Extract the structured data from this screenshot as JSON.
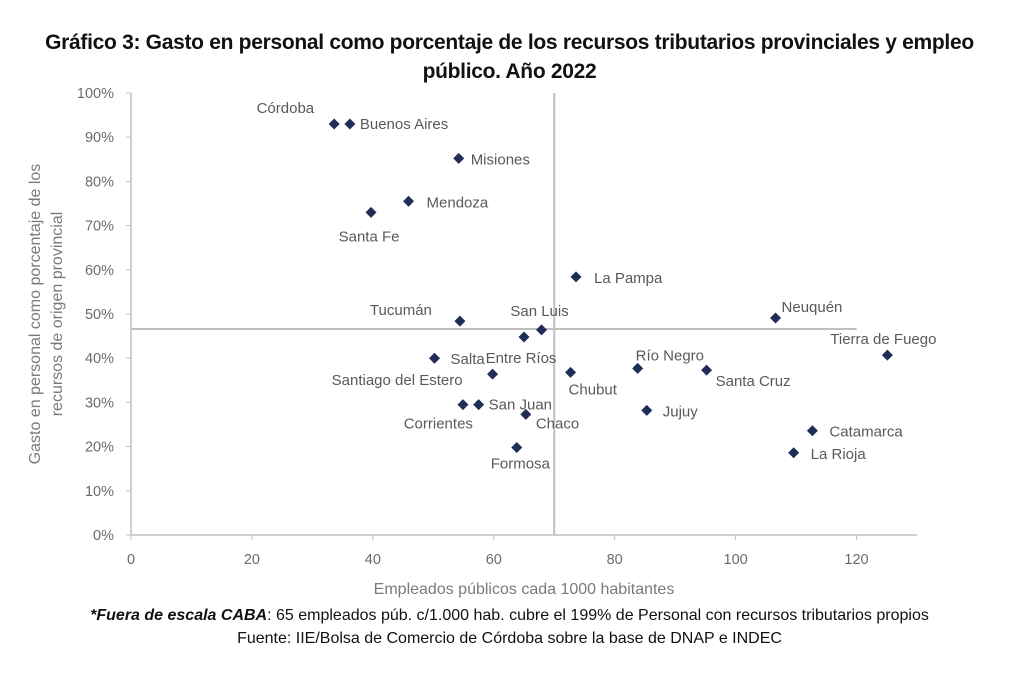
{
  "chart_data": {
    "type": "scatter",
    "title_line1": "Gráfico 3: Gasto en personal como porcentaje de los recursos tributarios provinciales y empleo",
    "title_line2": "público. Año 2022",
    "xlabel": "Empleados públicos cada 1000 habitantes",
    "ylabel_line1": "Gasto en personal como porcentaje de los",
    "ylabel_line2": "recursos de origen provincial",
    "xlim": [
      0,
      130
    ],
    "ylim": [
      0,
      100
    ],
    "x_ticks": [
      0,
      20,
      40,
      60,
      80,
      100,
      120
    ],
    "x_tick_labels": [
      "0",
      "20",
      "40",
      "60",
      "80",
      "100",
      "120"
    ],
    "y_ticks": [
      0,
      10,
      20,
      30,
      40,
      50,
      60,
      70,
      80,
      90,
      100
    ],
    "y_tick_labels": [
      "0%",
      "10%",
      "20%",
      "30%",
      "40%",
      "50%",
      "60%",
      "70%",
      "80%",
      "90%",
      "100%"
    ],
    "grid": false,
    "marker": "diamond",
    "marker_color": "#1f2d57",
    "reference_lines": {
      "vertical_x": 70,
      "horizontal_y": 46.6,
      "horizontal_x_range": [
        0,
        120
      ],
      "color": "#bfbfbf"
    },
    "points": [
      {
        "name": "Córdoba",
        "x": 33.6,
        "y": 93.0
      },
      {
        "name": "Buenos Aires",
        "x": 36.2,
        "y": 93.0
      },
      {
        "name": "Misiones",
        "x": 54.2,
        "y": 85.2
      },
      {
        "name": "Mendoza",
        "x": 45.9,
        "y": 75.5
      },
      {
        "name": "Santa Fe",
        "x": 39.7,
        "y": 73.0
      },
      {
        "name": "La Pampa",
        "x": 73.6,
        "y": 58.4
      },
      {
        "name": "Tucumán",
        "x": 54.4,
        "y": 48.4
      },
      {
        "name": "San Luis",
        "x": 67.9,
        "y": 46.4
      },
      {
        "name": "Entre Ríos",
        "x": 65.0,
        "y": 44.8
      },
      {
        "name": "Neuquén",
        "x": 106.6,
        "y": 49.1
      },
      {
        "name": "Tierra de Fuego",
        "x": 125.1,
        "y": 40.7
      },
      {
        "name": "Salta",
        "x": 50.2,
        "y": 40.0
      },
      {
        "name": "Santiago del Estero",
        "x": 59.8,
        "y": 36.4
      },
      {
        "name": "Chubut",
        "x": 72.7,
        "y": 36.8
      },
      {
        "name": "Río Negro",
        "x": 83.8,
        "y": 37.7
      },
      {
        "name": "Santa Cruz",
        "x": 95.2,
        "y": 37.3
      },
      {
        "name": "Corrientes",
        "x": 54.9,
        "y": 29.5
      },
      {
        "name": "San Juan",
        "x": 57.5,
        "y": 29.5
      },
      {
        "name": "Chaco",
        "x": 65.3,
        "y": 27.3
      },
      {
        "name": "Jujuy",
        "x": 85.3,
        "y": 28.2
      },
      {
        "name": "Formosa",
        "x": 63.8,
        "y": 19.8
      },
      {
        "name": "Catamarca",
        "x": 112.7,
        "y": 23.6
      },
      {
        "name": "La Rioja",
        "x": 109.6,
        "y": 18.6
      }
    ]
  },
  "footnote": {
    "bold_part": "*Fuera de escala CABA",
    "rest": ": 65 empleados púb. c/1.000 hab. cubre el 199% de Personal con recursos tributarios propios",
    "source": "Fuente: IIE/Bolsa de Comercio de Córdoba sobre la base de DNAP e INDEC"
  }
}
